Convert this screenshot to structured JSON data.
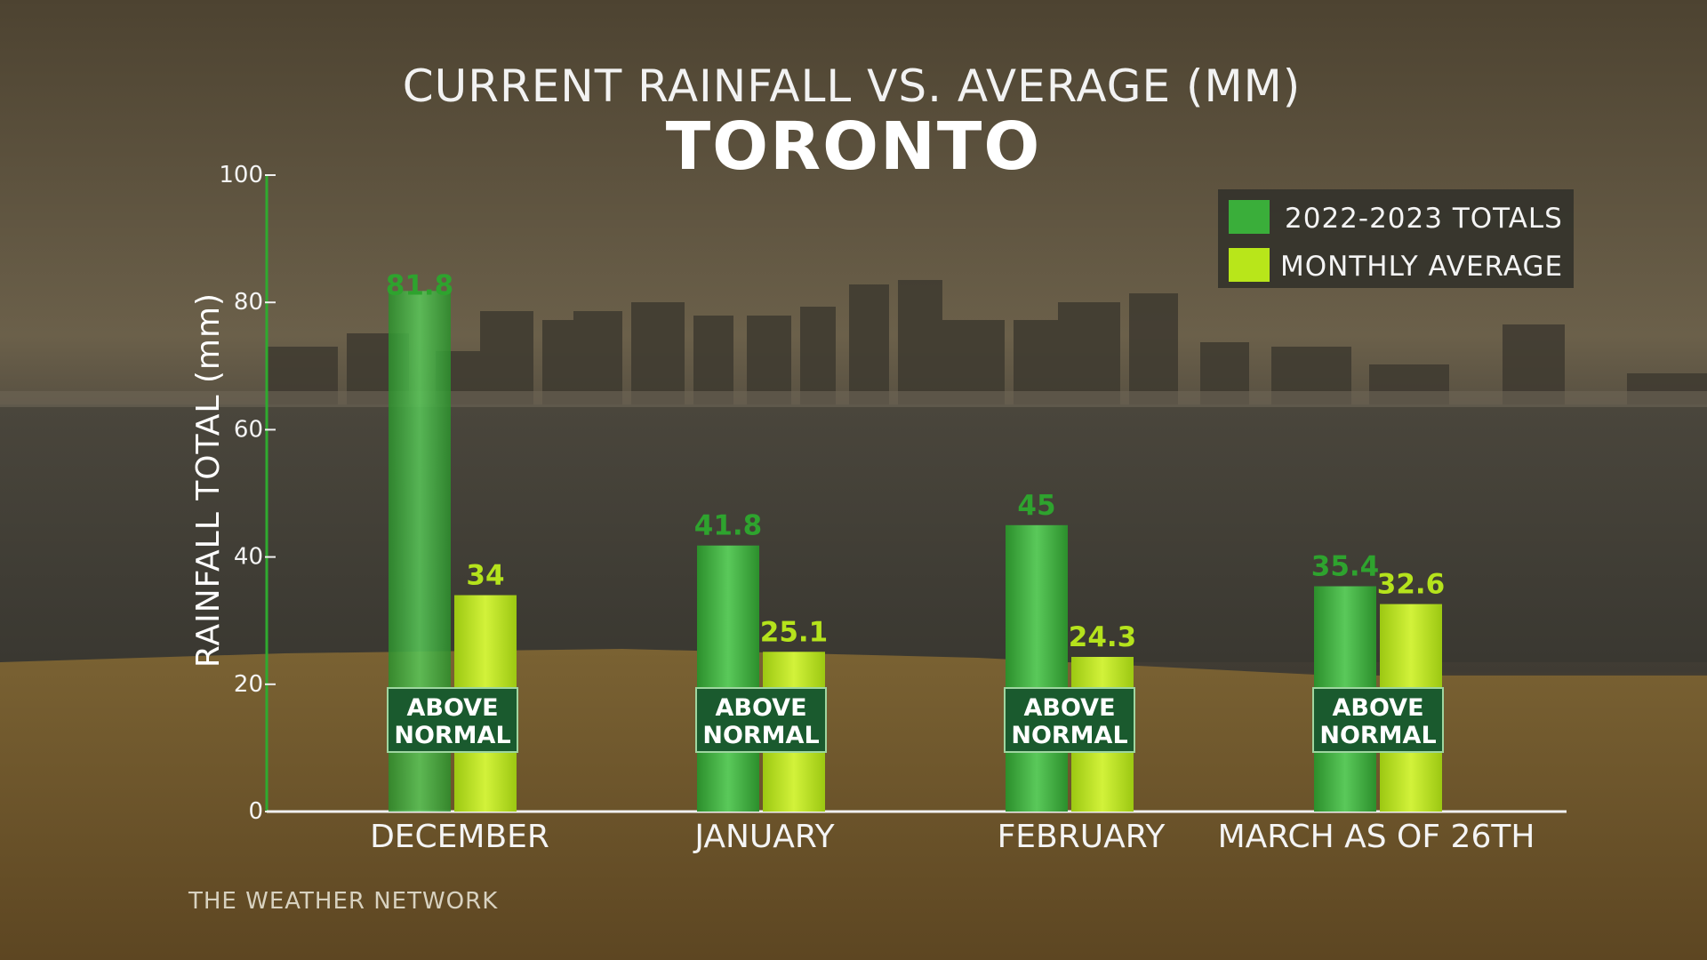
{
  "chart_data": {
    "type": "bar",
    "title": "CURRENT RAINFALL VS. AVERAGE (MM)",
    "subtitle": "TORONTO",
    "ylabel": "RAINFALL TOTAL (mm)",
    "xlabel": "",
    "ylim": [
      0,
      100
    ],
    "yticks": [
      0,
      20,
      40,
      60,
      80,
      100
    ],
    "categories": [
      "DECEMBER",
      "JANUARY",
      "FEBRUARY",
      "MARCH AS OF 26TH"
    ],
    "series": [
      {
        "name": "2022-2023 TOTALS",
        "color": "#3aae3a",
        "values": [
          81.8,
          41.8,
          45,
          35.4
        ],
        "labels": [
          "81.8",
          "41.8",
          "45",
          "35.4"
        ]
      },
      {
        "name": "MONTHLY AVERAGE",
        "color": "#b8e61a",
        "values": [
          34,
          25.1,
          24.3,
          32.6
        ],
        "labels": [
          "34",
          "25.1",
          "24.3",
          "32.6"
        ]
      }
    ],
    "badges": [
      {
        "line1": "ABOVE",
        "line2": "NORMAL"
      },
      {
        "line1": "ABOVE",
        "line2": "NORMAL"
      },
      {
        "line1": "ABOVE",
        "line2": "NORMAL"
      },
      {
        "line1": "ABOVE",
        "line2": "NORMAL"
      }
    ],
    "legend": "top-right"
  },
  "brand": "THE WEATHER NETWORK",
  "colors": {
    "totals": "#3aae3a",
    "average": "#b8e61a",
    "totals_label": "#2ea32e",
    "average_label": "#b5e31c",
    "badge_bg": "#1a5a2e",
    "axis": "#2faa2f"
  }
}
